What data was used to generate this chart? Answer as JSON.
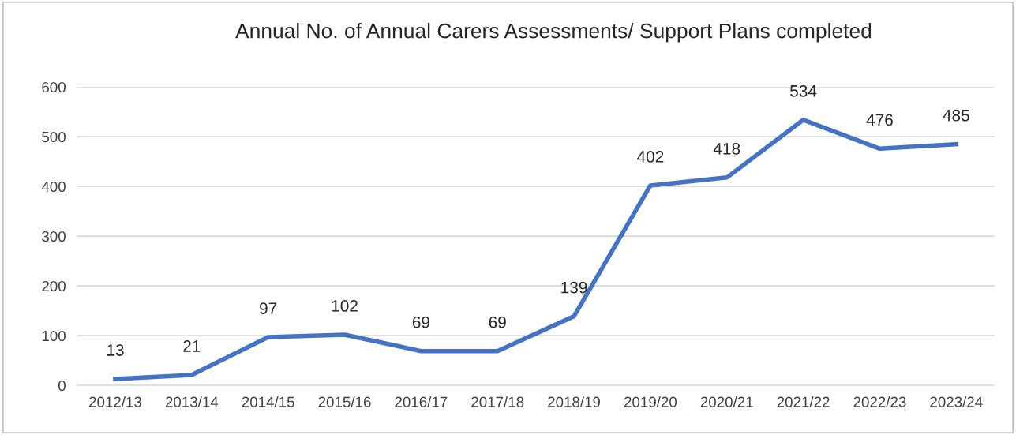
{
  "chart_data": {
    "type": "line",
    "title": "Annual No. of Annual Carers Assessments/ Support Plans completed",
    "categories": [
      "2012/13",
      "2013/14",
      "2014/15",
      "2015/16",
      "2016/17",
      "2017/18",
      "2018/19",
      "2019/20",
      "2020/21",
      "2021/22",
      "2022/23",
      "2023/24"
    ],
    "series": [
      {
        "color": "#4472c4",
        "values": [
          13,
          21,
          97,
          102,
          69,
          69,
          139,
          402,
          418,
          534,
          476,
          485
        ]
      }
    ],
    "ylim": [
      0,
      600
    ],
    "yticks": [
      0,
      100,
      200,
      300,
      400,
      500,
      600
    ],
    "grid": "y",
    "data_labels": true,
    "legend": false,
    "marker": "none",
    "line_style": "solid"
  }
}
